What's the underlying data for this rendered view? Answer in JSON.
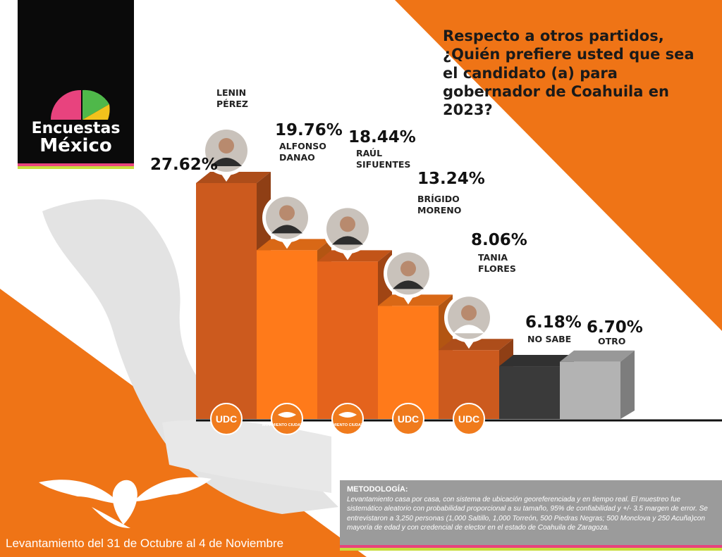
{
  "brand": {
    "line1": "Encuestas",
    "line2": "México"
  },
  "question": "Respecto a otros partidos, ¿Quién prefiere usted que sea el candidato (a) para gobernador de Coahuila en 2023?",
  "chart_data": {
    "type": "bar",
    "categories": [
      "LENIN PÉREZ",
      "ALFONSO DANAO",
      "RAÚL SIFUENTES",
      "BRÍGIDO MORENO",
      "TANIA FLORES",
      "NO SABE",
      "OTRO"
    ],
    "name_lines": [
      [
        "LENIN",
        "PÉREZ"
      ],
      [
        "ALFONSO",
        "DANAO"
      ],
      [
        "RAÚL",
        "SIFUENTES"
      ],
      [
        "BRÍGIDO",
        "MORENO"
      ],
      [
        "TANIA",
        "FLORES"
      ],
      [
        "NO SABE"
      ],
      [
        "OTRO"
      ]
    ],
    "values": [
      27.62,
      19.76,
      18.44,
      13.24,
      8.06,
      6.18,
      6.7
    ],
    "value_labels": [
      "27.62%",
      "19.76%",
      "18.44%",
      "13.24%",
      "8.06%",
      "6.18%",
      "6.70%"
    ],
    "party_badges": [
      "UDC",
      "MOVIMIENTO CIUDADANO",
      "MOVIMIENTO CIUDADANO",
      "UDC",
      "UDC",
      "",
      ""
    ],
    "colors": [
      "#cc5a1e",
      "#ff7a1a",
      "#e4631c",
      "#ff7a1a",
      "#cc5a1e",
      "#3a3a3a",
      "#b3b3b3"
    ]
  },
  "methodology": {
    "title": "METODOLOGÍA:",
    "body": "Levantamiento casa por casa, con sistema de ubicación georeferenciada y en tiempo real. El muestreo fue sistemático aleatorio con probabilidad proporcional a su tamaño, 95% de confiabilidad y +/- 3.5 margen de error. Se entrevistaron a 3,250 personas  (1,000 Saltillo, 1,000 Torreón, 500 Piedras Negras; 500 Monclova y 250 Acuña)con mayoría de edad y con credencial de elector en el estado de Coahuila de Zaragoza."
  },
  "fieldwork_dates": "Levantamiento del 31 de Octubre al 4 de Noviembre",
  "palette": {
    "orange": "#ef7416",
    "dark_orange": "#cc5a1e",
    "map_gray": "#d9d9d9",
    "pink": "#e8437e",
    "lime": "#c8dc3c"
  }
}
